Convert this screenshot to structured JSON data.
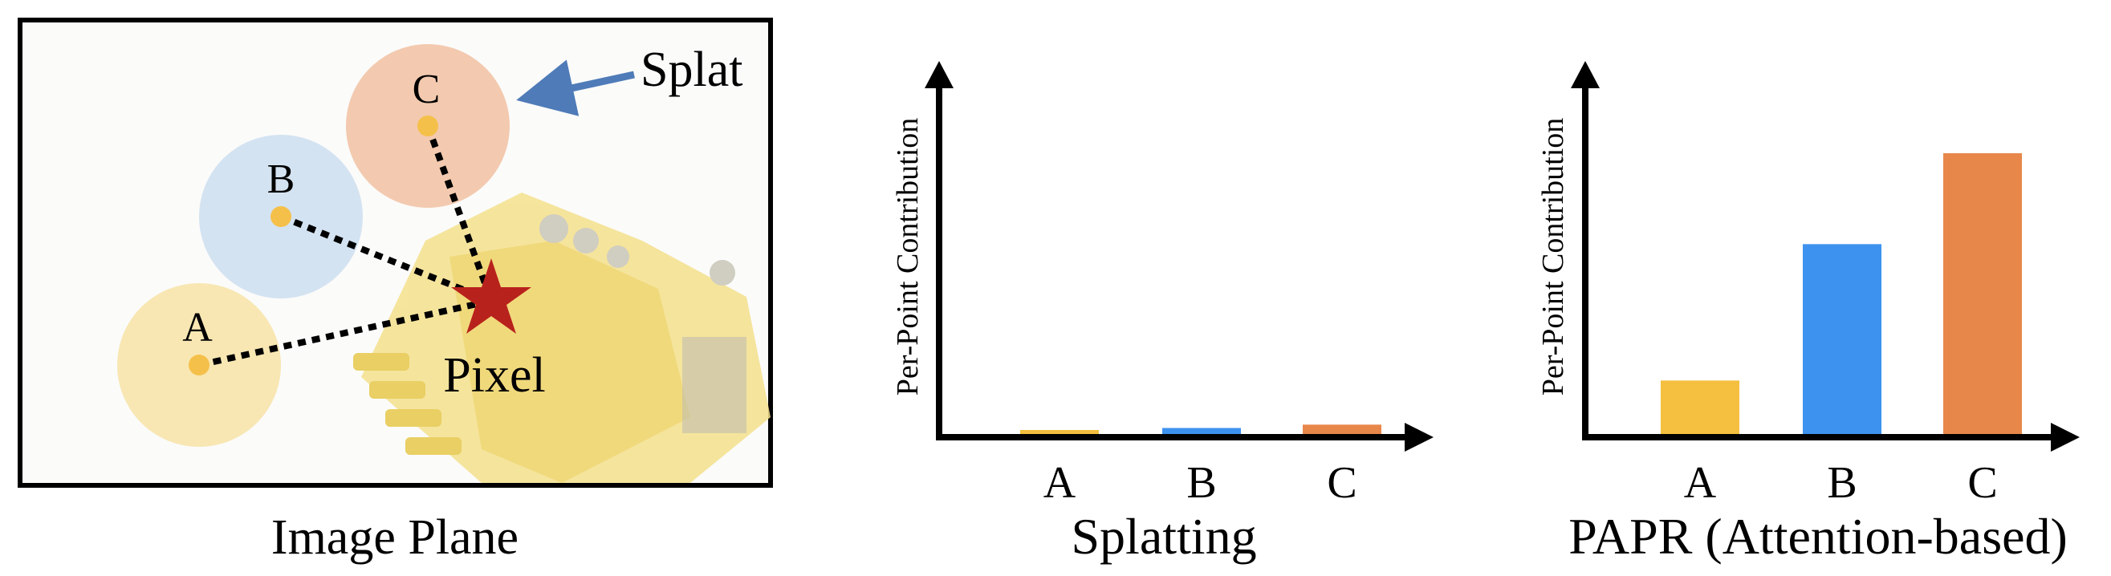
{
  "image_plane": {
    "caption": "Image Plane",
    "splat_label": "Splat",
    "pixel_label": "Pixel",
    "points": [
      {
        "label": "A",
        "color": "#f7e3a6"
      },
      {
        "label": "B",
        "color": "#cfe0ef"
      },
      {
        "label": "C",
        "color": "#f2c4a6"
      }
    ],
    "point_dot_color": "#f5c04a",
    "star_color": "#b8221c",
    "arrow_color": "#4f7bb8",
    "frame_color": "#000000"
  },
  "chart_data": [
    {
      "type": "bar",
      "title": "Splatting",
      "xlabel": "",
      "ylabel": "Per-Point Contribution",
      "categories": [
        "A",
        "B",
        "C"
      ],
      "values": [
        0.03,
        0.045,
        0.07
      ],
      "colors": [
        "#f5bf3f",
        "#3d92ef",
        "#e8874a"
      ],
      "ylim": [
        0,
        2.4
      ],
      "grid": false
    },
    {
      "type": "bar",
      "title": "PAPR (Attention-based)",
      "xlabel": "",
      "ylabel": "Per-Point Contribution",
      "categories": [
        "A",
        "B",
        "C"
      ],
      "values": [
        0.4,
        1.42,
        2.1
      ],
      "colors": [
        "#f5bf3f",
        "#3d92ef",
        "#e8874a"
      ],
      "ylim": [
        0,
        2.4
      ],
      "grid": false
    }
  ]
}
